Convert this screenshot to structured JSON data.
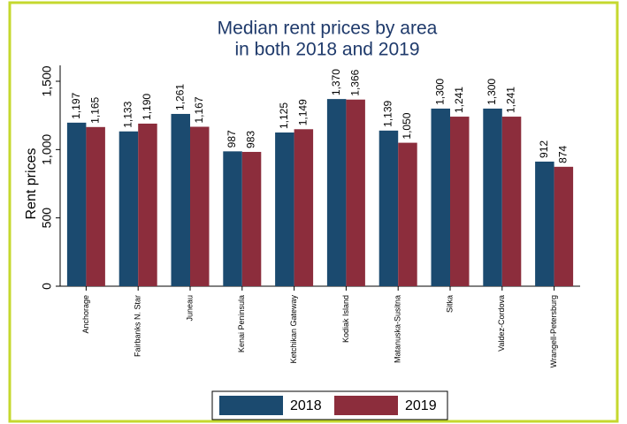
{
  "chart_data": {
    "type": "bar",
    "title": [
      "Median rent prices by area",
      "in both 2018 and 2019"
    ],
    "y_label": "Rent prices",
    "categories": [
      "Anchorage",
      "Fairbanks N. Star",
      "Juneau",
      "Kenai Peninsula",
      "Ketchikan Gateway",
      "Kodiak Island",
      "Matanuska-Susitna",
      "Sitka",
      "Valdez-Cordova",
      "Wrangell-Petersburg"
    ],
    "series": [
      {
        "name": "2018",
        "color": "#1b4a6f",
        "values": [
          1197,
          1133,
          1261,
          987,
          1125,
          1370,
          1139,
          1300,
          1300,
          912
        ],
        "value_labels": [
          "1,197",
          "1,133",
          "1,261",
          "987",
          "1,125",
          "1,370",
          "1,139",
          "1,300",
          "1,300",
          "912"
        ]
      },
      {
        "name": "2019",
        "color": "#8c2d3c",
        "values": [
          1165,
          1190,
          1167,
          983,
          1149,
          1366,
          1050,
          1241,
          1241,
          874
        ],
        "value_labels": [
          "1,165",
          "1,190",
          "1,167",
          "983",
          "1,149",
          "1,366",
          "1,050",
          "1,241",
          "1,241",
          "874"
        ]
      }
    ],
    "ylim": [
      0,
      1500
    ],
    "yticks": [
      0,
      500,
      {
        "value": 1000,
        "label": "1,000"
      },
      {
        "value": 1500,
        "label": "1,500"
      }
    ],
    "grid": false
  }
}
